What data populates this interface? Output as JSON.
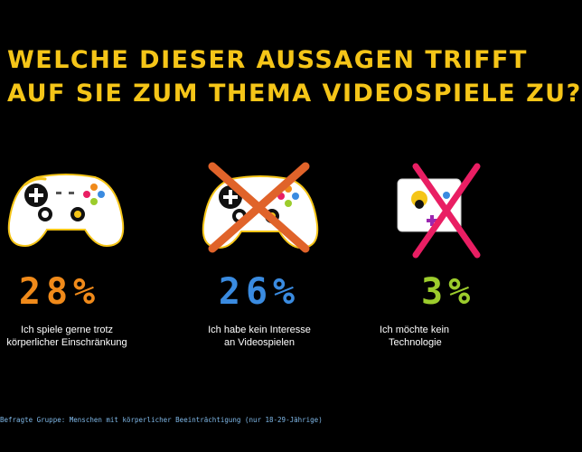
{
  "title": {
    "line1": "WELCHE DIESER AUSSAGEN TRIFFT",
    "line2": "AUF SIE ZUM THEMA VIDEOSPIELE ZU?"
  },
  "stats": [
    {
      "icon": "gamepad-icon",
      "percent": "28%",
      "color": "#f08a1a",
      "label_line1": "Ich spiele gerne trotz",
      "label_line2": "körperlicher Einschränkung"
    },
    {
      "icon": "crossed-out-gamepad-icon",
      "percent": "26%",
      "color": "#3a8be0",
      "label_line1": "Ich habe kein Interesse",
      "label_line2": "an Videospielen"
    },
    {
      "icon": "crossed-out-tablet-game-icon",
      "percent": "3%",
      "color": "#9ccc2c",
      "label_line1": "Ich möchte kein",
      "label_line2": "Technologie"
    }
  ],
  "footnote": "Befragte Gruppe: Menschen mit körperlicher Beeinträchtigung (nur 18-29-Jährige)",
  "colors": {
    "background": "#000000",
    "title": "#f5c518",
    "cross": "#e0632a",
    "footnote": "#7fb8e8"
  }
}
